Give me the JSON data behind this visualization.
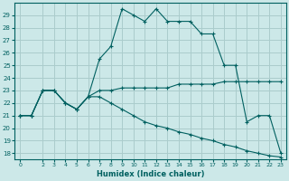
{
  "xlabel": "Humidex (Indice chaleur)",
  "bg_color": "#cce8e8",
  "grid_color": "#aacccc",
  "line_color": "#006060",
  "xlim": [
    -0.5,
    23.5
  ],
  "ylim": [
    17.5,
    30
  ],
  "xtick_vals": [
    0,
    2,
    3,
    4,
    5,
    6,
    7,
    8,
    9,
    10,
    11,
    12,
    13,
    14,
    15,
    16,
    17,
    18,
    19,
    20,
    21,
    22,
    23
  ],
  "ytick_vals": [
    18,
    19,
    20,
    21,
    22,
    23,
    24,
    25,
    26,
    27,
    28,
    29
  ],
  "series1_x": [
    0,
    1,
    2,
    3,
    4,
    5,
    6,
    7,
    8,
    9,
    10,
    11,
    12,
    13,
    14,
    15,
    16,
    17,
    18,
    19,
    20,
    21,
    22,
    23
  ],
  "series1_y": [
    21,
    21,
    23,
    23,
    22,
    21.5,
    22.5,
    23,
    23,
    23.2,
    23.2,
    23.2,
    23.2,
    23.2,
    23.5,
    23.5,
    23.5,
    23.5,
    23.7,
    23.7,
    23.7,
    23.7,
    23.7,
    23.7
  ],
  "series2_x": [
    0,
    1,
    2,
    3,
    4,
    5,
    6,
    7,
    8,
    9,
    10,
    11,
    12,
    13,
    14,
    15,
    16,
    17,
    18,
    19,
    20,
    21,
    22,
    23
  ],
  "series2_y": [
    21,
    21,
    23,
    23,
    22,
    21.5,
    22.5,
    25.5,
    26.5,
    29.5,
    29.0,
    28.5,
    29.5,
    28.5,
    28.5,
    28.5,
    27.5,
    27.5,
    25.0,
    25.0,
    20.5,
    21.0,
    21.0,
    18.0
  ],
  "series3_x": [
    0,
    1,
    2,
    3,
    4,
    5,
    6,
    7,
    8,
    9,
    10,
    11,
    12,
    13,
    14,
    15,
    16,
    17,
    18,
    19,
    20,
    21,
    22,
    23
  ],
  "series3_y": [
    21,
    21,
    23,
    23,
    22,
    21.5,
    22.5,
    22.5,
    22.0,
    21.5,
    21.0,
    20.5,
    20.2,
    20.0,
    19.7,
    19.5,
    19.2,
    19.0,
    18.7,
    18.5,
    18.2,
    18.0,
    17.8,
    17.7
  ],
  "figwidth": 3.2,
  "figheight": 2.0,
  "dpi": 100
}
